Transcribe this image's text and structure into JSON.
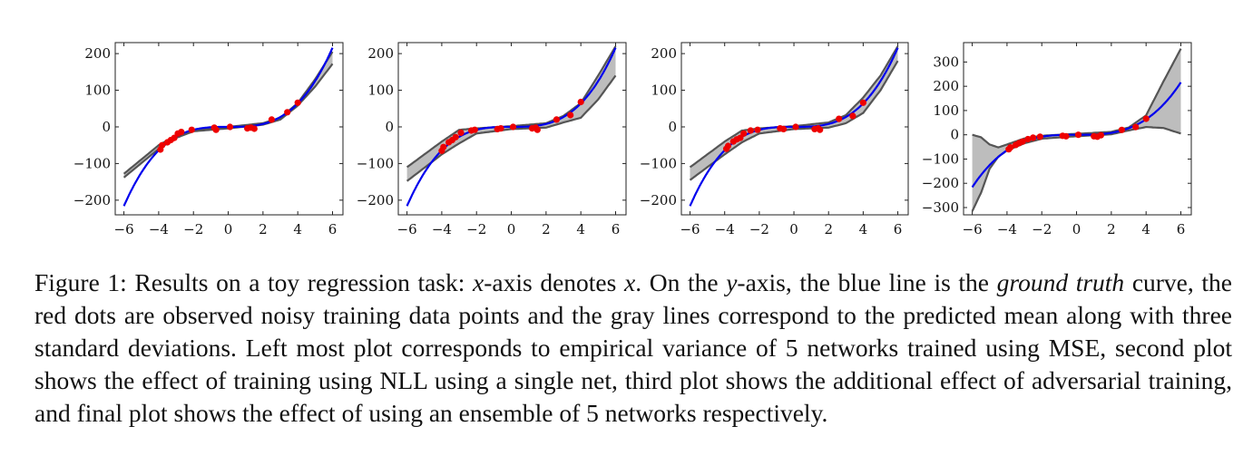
{
  "figure": {
    "caption": {
      "s1": "Figure 1: Results on a toy regression task: ",
      "m1": "x",
      "s2": "-axis denotes ",
      "m2": "x",
      "s3": ". On the ",
      "m3": "y",
      "s4": "-axis, the blue line is the ",
      "em1": "ground truth",
      "s5": " curve, the red dots are observed noisy training data points and the gray lines correspond to the predicted mean along with three standard deviations. Left most plot corresponds to empirical variance of 5 networks trained using MSE, second plot shows the effect of training using NLL using a single net, third plot shows the additional effect of adversarial training, and final plot shows the effect of using an ensemble of 5 networks respectively."
    }
  },
  "colors": {
    "truth": "#0000ee",
    "band_fill": "#bdbdbd",
    "band_edge": "#555555",
    "points": "#ee0000"
  },
  "chart_data": [
    {
      "type": "line",
      "panel": "Left most plot (MSE, 5 networks)",
      "xlim": [
        -6.5,
        6.6
      ],
      "ylim": [
        -240,
        230
      ],
      "xticks": [
        -6,
        -4,
        -2,
        0,
        2,
        4,
        6
      ],
      "yticks": [
        -200,
        -100,
        0,
        100,
        200
      ],
      "ytick_labels": [
        "−200",
        "−100",
        "0",
        "100",
        "200"
      ],
      "xtick_labels": [
        "−6",
        "−4",
        "−2",
        "0",
        "2",
        "4",
        "6"
      ],
      "ground_truth": "y = x^3",
      "points": [
        [
          -3.9,
          -62
        ],
        [
          -3.8,
          -50
        ],
        [
          -3.5,
          -42
        ],
        [
          -3.3,
          -36
        ],
        [
          -3.1,
          -30
        ],
        [
          -2.9,
          -18
        ],
        [
          -2.7,
          -14
        ],
        [
          -2.1,
          -8
        ],
        [
          -0.8,
          -2
        ],
        [
          -0.7,
          -8
        ],
        [
          0.1,
          0
        ],
        [
          1.1,
          -4
        ],
        [
          1.3,
          -2
        ],
        [
          1.5,
          -5
        ],
        [
          2.5,
          20
        ],
        [
          3.4,
          40
        ],
        [
          4.0,
          66
        ]
      ],
      "band_upper": [
        [
          -6,
          -128
        ],
        [
          -4,
          -50
        ],
        [
          -3,
          -24
        ],
        [
          -2,
          -10
        ],
        [
          0,
          0
        ],
        [
          2,
          10
        ],
        [
          3,
          25
        ],
        [
          4,
          65
        ],
        [
          5,
          130
        ],
        [
          6,
          205
        ]
      ],
      "band_lower": [
        [
          -6,
          -138
        ],
        [
          -4,
          -60
        ],
        [
          -3,
          -30
        ],
        [
          -2,
          -12
        ],
        [
          0,
          -4
        ],
        [
          2,
          6
        ],
        [
          3,
          20
        ],
        [
          4,
          58
        ],
        [
          5,
          110
        ],
        [
          6,
          172
        ]
      ]
    },
    {
      "type": "line",
      "panel": "second plot (NLL, single net)",
      "xlim": [
        -6.5,
        6.6
      ],
      "ylim": [
        -240,
        230
      ],
      "xticks": [
        -6,
        -4,
        -2,
        0,
        2,
        4,
        6
      ],
      "yticks": [
        -200,
        -100,
        0,
        100,
        200
      ],
      "ytick_labels": [
        "−200",
        "−100",
        "0",
        "100",
        "200"
      ],
      "xtick_labels": [
        "−6",
        "−4",
        "−2",
        "0",
        "2",
        "4",
        "6"
      ],
      "ground_truth": "y = x^3",
      "points": [
        [
          -4.0,
          -65
        ],
        [
          -3.9,
          -55
        ],
        [
          -3.6,
          -42
        ],
        [
          -3.4,
          -36
        ],
        [
          -3.2,
          -28
        ],
        [
          -2.9,
          -16
        ],
        [
          -2.3,
          -10
        ],
        [
          -2.1,
          -8
        ],
        [
          -0.8,
          -6
        ],
        [
          -0.6,
          -4
        ],
        [
          0.1,
          0
        ],
        [
          1.2,
          -4
        ],
        [
          1.4,
          -2
        ],
        [
          1.5,
          -8
        ],
        [
          2.6,
          20
        ],
        [
          3.4,
          32
        ],
        [
          4.0,
          68
        ]
      ],
      "band_upper": [
        [
          -6,
          -110
        ],
        [
          -4,
          -40
        ],
        [
          -3,
          -8
        ],
        [
          -2,
          -4
        ],
        [
          0,
          2
        ],
        [
          2,
          10
        ],
        [
          3,
          30
        ],
        [
          4,
          65
        ],
        [
          5,
          140
        ],
        [
          6,
          220
        ]
      ],
      "band_lower": [
        [
          -6,
          -148
        ],
        [
          -4,
          -75
        ],
        [
          -3,
          -45
        ],
        [
          -2,
          -18
        ],
        [
          0,
          -6
        ],
        [
          2,
          -2
        ],
        [
          3,
          12
        ],
        [
          4,
          25
        ],
        [
          5,
          75
        ],
        [
          6,
          140
        ]
      ]
    },
    {
      "type": "line",
      "panel": "third plot (adversarial training)",
      "xlim": [
        -6.5,
        6.6
      ],
      "ylim": [
        -240,
        230
      ],
      "xticks": [
        -6,
        -4,
        -2,
        0,
        2,
        4,
        6
      ],
      "yticks": [
        -200,
        -100,
        0,
        100,
        200
      ],
      "ytick_labels": [
        "−200",
        "−100",
        "0",
        "100",
        "200"
      ],
      "xtick_labels": [
        "−6",
        "−4",
        "−2",
        "0",
        "2",
        "4",
        "6"
      ],
      "ground_truth": "y = x^3",
      "points": [
        [
          -3.9,
          -60
        ],
        [
          -3.8,
          -52
        ],
        [
          -3.5,
          -40
        ],
        [
          -3.3,
          -34
        ],
        [
          -3.1,
          -30
        ],
        [
          -2.9,
          -18
        ],
        [
          -2.5,
          -10
        ],
        [
          -2.1,
          -8
        ],
        [
          -0.8,
          -4
        ],
        [
          -0.6,
          -6
        ],
        [
          0.1,
          0
        ],
        [
          1.2,
          -6
        ],
        [
          1.4,
          -4
        ],
        [
          1.5,
          -8
        ],
        [
          2.6,
          22
        ],
        [
          3.4,
          30
        ],
        [
          4.0,
          66
        ]
      ],
      "band_upper": [
        [
          -6,
          -110
        ],
        [
          -4,
          -40
        ],
        [
          -3,
          -10
        ],
        [
          -2,
          -4
        ],
        [
          0,
          2
        ],
        [
          2,
          12
        ],
        [
          3,
          32
        ],
        [
          4,
          80
        ],
        [
          5,
          140
        ],
        [
          6,
          220
        ]
      ],
      "band_lower": [
        [
          -6,
          -145
        ],
        [
          -4,
          -75
        ],
        [
          -3,
          -42
        ],
        [
          -2,
          -18
        ],
        [
          0,
          -6
        ],
        [
          2,
          -2
        ],
        [
          3,
          10
        ],
        [
          4,
          38
        ],
        [
          5,
          100
        ],
        [
          6,
          180
        ]
      ]
    },
    {
      "type": "line",
      "panel": "final plot (ensemble of 5 networks)",
      "xlim": [
        -6.5,
        6.6
      ],
      "ylim": [
        -330,
        380
      ],
      "xticks": [
        -6,
        -4,
        -2,
        0,
        2,
        4,
        6
      ],
      "yticks": [
        -300,
        -200,
        -100,
        0,
        100,
        200,
        300
      ],
      "ytick_labels": [
        "−300",
        "−200",
        "−100",
        "0",
        "100",
        "200",
        "300"
      ],
      "xtick_labels": [
        "−6",
        "−4",
        "−2",
        "0",
        "2",
        "4",
        "6"
      ],
      "ground_truth": "y = x^3",
      "points": [
        [
          -3.9,
          -60
        ],
        [
          -3.8,
          -52
        ],
        [
          -3.5,
          -42
        ],
        [
          -3.3,
          -34
        ],
        [
          -3.1,
          -28
        ],
        [
          -2.8,
          -18
        ],
        [
          -2.5,
          -12
        ],
        [
          -2.1,
          -8
        ],
        [
          -0.8,
          -4
        ],
        [
          -0.6,
          -6
        ],
        [
          0.1,
          0
        ],
        [
          1.0,
          -6
        ],
        [
          1.2,
          -8
        ],
        [
          1.4,
          -2
        ],
        [
          2.6,
          20
        ],
        [
          3.4,
          32
        ],
        [
          4.0,
          66
        ]
      ],
      "band_upper": [
        [
          -6,
          0
        ],
        [
          -5.5,
          -10
        ],
        [
          -5,
          -40
        ],
        [
          -4.5,
          -52
        ],
        [
          -4,
          -40
        ],
        [
          -3,
          -15
        ],
        [
          -2,
          -4
        ],
        [
          0,
          4
        ],
        [
          2,
          12
        ],
        [
          3,
          30
        ],
        [
          4,
          80
        ],
        [
          5,
          220
        ],
        [
          6,
          355
        ]
      ],
      "band_lower": [
        [
          -6,
          -315
        ],
        [
          -5.5,
          -240
        ],
        [
          -5,
          -140
        ],
        [
          -4.5,
          -90
        ],
        [
          -4,
          -65
        ],
        [
          -3,
          -35
        ],
        [
          -2,
          -16
        ],
        [
          0,
          -6
        ],
        [
          2,
          2
        ],
        [
          3,
          18
        ],
        [
          4,
          32
        ],
        [
          5,
          28
        ],
        [
          6,
          5
        ]
      ]
    }
  ]
}
